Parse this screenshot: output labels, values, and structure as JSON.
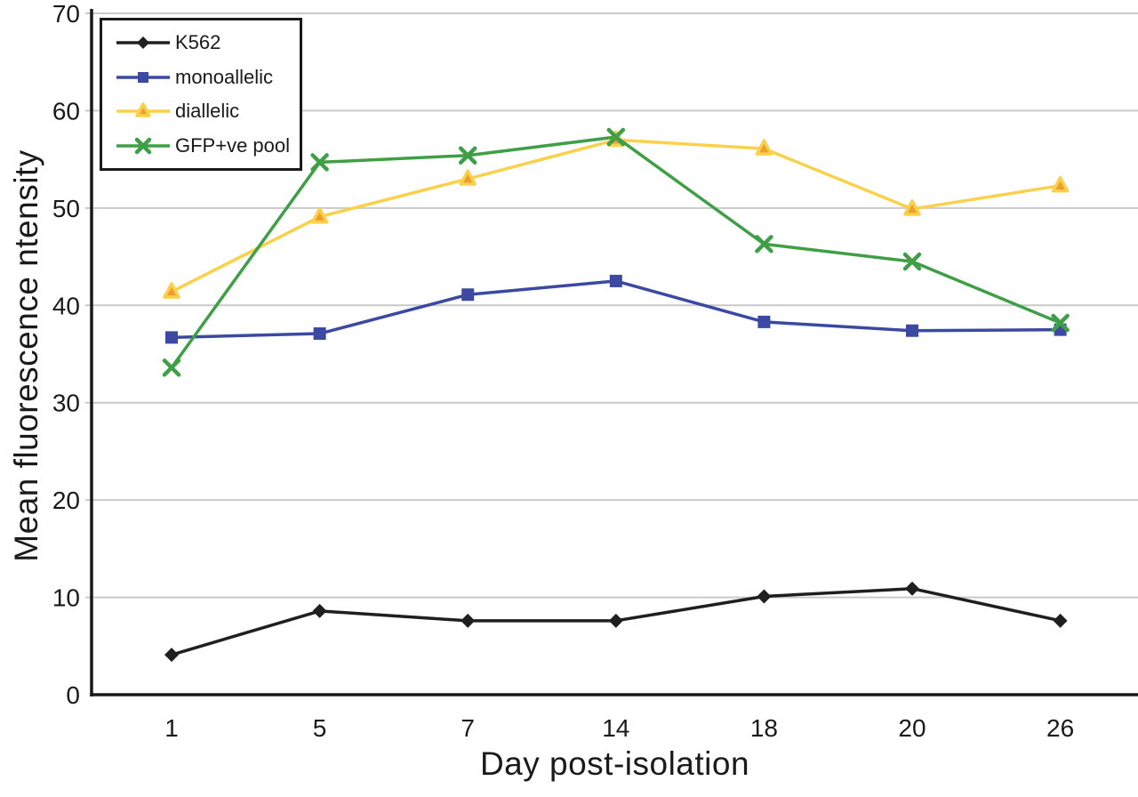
{
  "chart_data": {
    "type": "line",
    "title": "",
    "xlabel": "Day post-isolation",
    "ylabel": "Mean fluorescence ntensity",
    "x_categories": [
      "1",
      "5",
      "7",
      "14",
      "18",
      "20",
      "26"
    ],
    "ylim": [
      0,
      70
    ],
    "yticks": [
      0,
      10,
      20,
      30,
      40,
      50,
      60,
      70
    ],
    "grid": "horizontal-gray-lines",
    "legend_position": "top-left",
    "series": [
      {
        "name": "K562",
        "marker": "diamond-icon",
        "color": "#1f1f1f",
        "values": [
          4.1,
          8.6,
          7.6,
          7.6,
          10.1,
          10.9,
          7.6
        ]
      },
      {
        "name": "monoallelic",
        "marker": "square-icon",
        "color": "#3b49a3",
        "values": [
          36.7,
          37.1,
          41.1,
          42.5,
          38.3,
          37.4,
          37.5
        ]
      },
      {
        "name": "diallelic",
        "marker": "triangle-icon",
        "color": "#fbd14b",
        "marker_fill": "#ef9f2f",
        "values": [
          41.4,
          49.1,
          53.0,
          57.0,
          56.1,
          49.9,
          52.3
        ]
      },
      {
        "name": "GFP+ve pool",
        "marker": "x-icon",
        "color": "#3f9f46",
        "values": [
          33.6,
          54.7,
          55.4,
          57.3,
          46.3,
          44.5,
          38.2
        ]
      }
    ],
    "draw_order": [
      2,
      1,
      3,
      0
    ],
    "colors": {
      "grid": "#c9c9c9",
      "axis": "#1a1a1a",
      "background": "#ffffff"
    }
  }
}
